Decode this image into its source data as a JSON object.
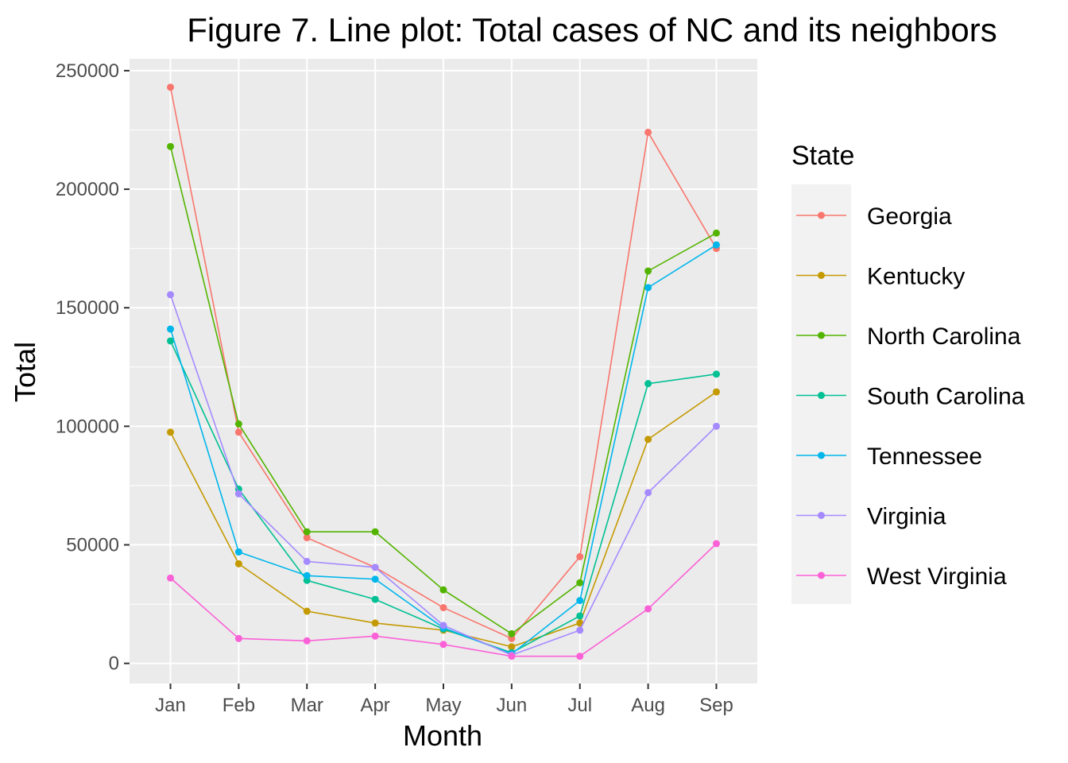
{
  "chart_data": {
    "type": "line",
    "title": "Figure 7. Line plot: Total cases of NC and its neighbors",
    "xlabel": "Month",
    "ylabel": "Total",
    "categories": [
      "Jan",
      "Feb",
      "Mar",
      "Apr",
      "May",
      "Jun",
      "Jul",
      "Aug",
      "Sep"
    ],
    "ylim": [
      -8500,
      255000
    ],
    "yticks": [
      0,
      50000,
      100000,
      150000,
      200000,
      250000
    ],
    "ytick_labels": [
      "0",
      "50000",
      "100000",
      "150000",
      "200000",
      "250000"
    ],
    "grid": true,
    "legend_title": "State",
    "legend_position": "right",
    "series": [
      {
        "name": "Georgia",
        "color": "#F8766D",
        "values": [
          243000,
          97500,
          53000,
          40500,
          23500,
          10500,
          45000,
          224000,
          175000
        ]
      },
      {
        "name": "Kentucky",
        "color": "#C49A00",
        "values": [
          97500,
          42000,
          22000,
          17000,
          14000,
          7000,
          17000,
          94500,
          114500
        ]
      },
      {
        "name": "North Carolina",
        "color": "#53B400",
        "values": [
          218000,
          101000,
          55500,
          55500,
          31000,
          12500,
          34000,
          165500,
          181500
        ]
      },
      {
        "name": "South Carolina",
        "color": "#00C094",
        "values": [
          136000,
          73500,
          35000,
          27000,
          14500,
          4500,
          20000,
          118000,
          122000
        ]
      },
      {
        "name": "Tennessee",
        "color": "#00B6EB",
        "values": [
          141000,
          47000,
          37000,
          35500,
          15000,
          4000,
          26500,
          158500,
          176500
        ]
      },
      {
        "name": "Virginia",
        "color": "#A58AFF",
        "values": [
          155500,
          71500,
          43000,
          40500,
          16000,
          3500,
          14000,
          72000,
          100000
        ]
      },
      {
        "name": "West Virginia",
        "color": "#FB61D7",
        "values": [
          36000,
          10500,
          9500,
          11500,
          8000,
          3000,
          3000,
          23000,
          50500
        ]
      }
    ]
  }
}
